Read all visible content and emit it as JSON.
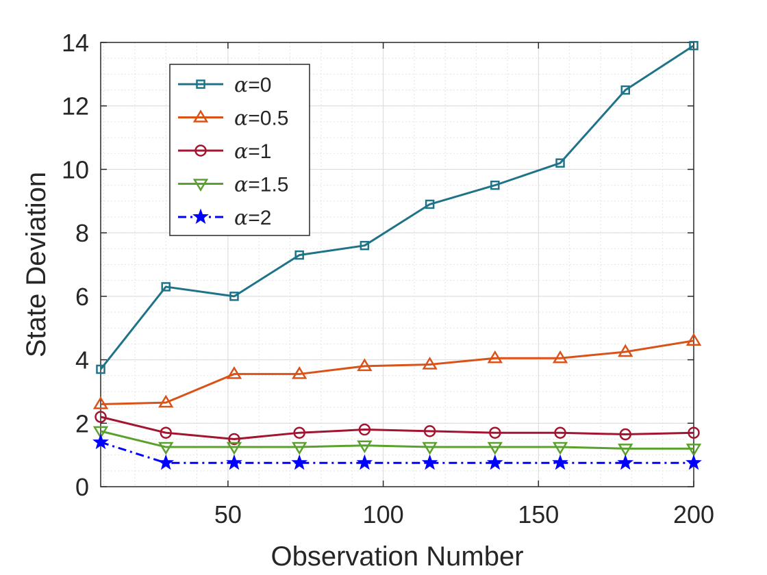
{
  "chart_data": {
    "type": "line",
    "title": "",
    "xlabel": "Observation Number",
    "ylabel": "State Deviation",
    "xlim": [
      9,
      200
    ],
    "ylim": [
      0,
      14
    ],
    "xticks": [
      50,
      100,
      150,
      200
    ],
    "yticks": [
      0,
      2,
      4,
      6,
      8,
      10,
      12,
      14
    ],
    "grid": true,
    "minor_grid": true,
    "legend_location": "top-left",
    "x": [
      9,
      30,
      52,
      73,
      94,
      115,
      136,
      157,
      178,
      200
    ],
    "series": [
      {
        "name": "α=0",
        "greek": "α",
        "suffix": "=0",
        "color": "#1f7388",
        "marker": "square",
        "line_style": "solid",
        "values": [
          3.7,
          6.3,
          6.0,
          7.3,
          7.6,
          8.9,
          9.5,
          10.2,
          12.5,
          13.9
        ]
      },
      {
        "name": "α=0.5",
        "greek": "α",
        "suffix": "=0.5",
        "color": "#d95319",
        "marker": "triangle-up",
        "line_style": "solid",
        "values": [
          2.6,
          2.65,
          3.55,
          3.55,
          3.8,
          3.85,
          4.05,
          4.05,
          4.25,
          4.6
        ]
      },
      {
        "name": "α=1",
        "greek": "α",
        "suffix": "=1",
        "color": "#a2142f",
        "marker": "circle",
        "line_style": "solid",
        "values": [
          2.2,
          1.7,
          1.5,
          1.7,
          1.8,
          1.75,
          1.7,
          1.7,
          1.65,
          1.7
        ]
      },
      {
        "name": "α=1.5",
        "greek": "α",
        "suffix": "=1.5",
        "color": "#5aa02c",
        "marker": "triangle-down",
        "line_style": "solid",
        "values": [
          1.75,
          1.25,
          1.25,
          1.25,
          1.3,
          1.25,
          1.25,
          1.25,
          1.2,
          1.2
        ]
      },
      {
        "name": "α=2",
        "greek": "α",
        "suffix": "=2",
        "color": "#0000ff",
        "marker": "star",
        "line_style": "dashdot",
        "values": [
          1.4,
          0.75,
          0.75,
          0.75,
          0.75,
          0.75,
          0.75,
          0.75,
          0.75,
          0.75
        ]
      }
    ]
  }
}
